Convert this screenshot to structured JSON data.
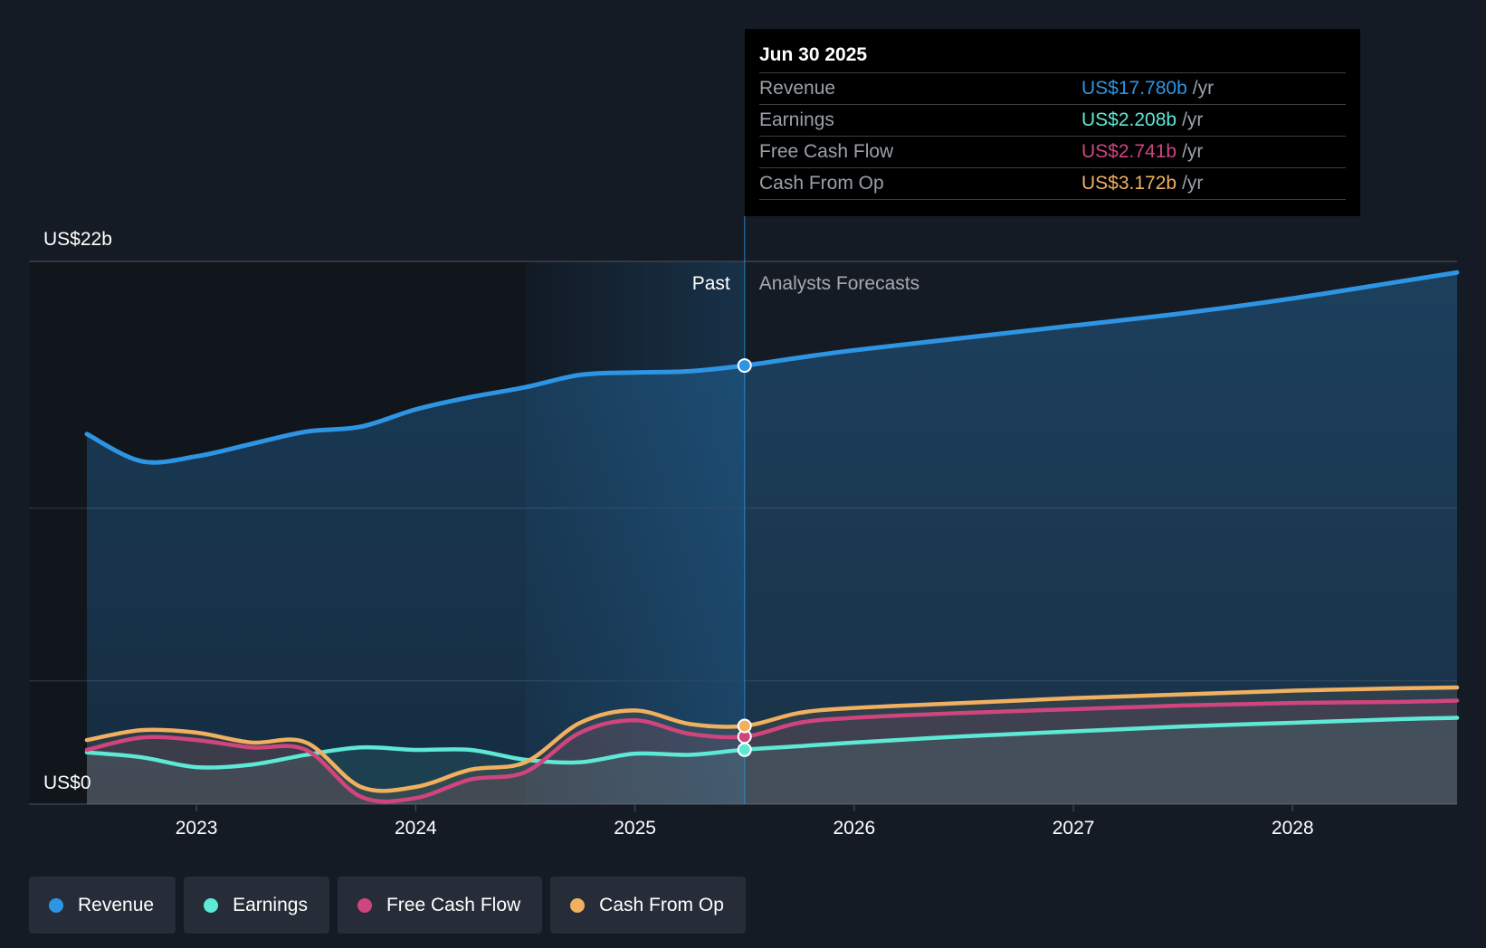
{
  "chart_data": {
    "type": "area",
    "y_axis": {
      "top_label": "US$22b",
      "bottom_label": "US$0",
      "ylim": [
        0,
        22
      ]
    },
    "x_ticks": [
      "2023",
      "2024",
      "2025",
      "2026",
      "2027",
      "2028"
    ],
    "xlim": [
      2022.5,
      2028.75
    ],
    "past_label": "Past",
    "forecast_label": "Analysts Forecasts",
    "split_x": 2025.5,
    "highlight_start_x": 2024.5,
    "tooltip": {
      "date": "Jun 30 2025",
      "rows": [
        {
          "label": "Revenue",
          "value": "US$17.780b",
          "unit": "/yr",
          "color": "#2d95e3"
        },
        {
          "label": "Earnings",
          "value": "US$2.208b",
          "unit": "/yr",
          "color": "#5ee8d6"
        },
        {
          "label": "Free Cash Flow",
          "value": "US$2.741b",
          "unit": "/yr",
          "color": "#d0457d"
        },
        {
          "label": "Cash From Op",
          "value": "US$3.172b",
          "unit": "/yr",
          "color": "#f0b060"
        }
      ]
    },
    "series": [
      {
        "name": "Revenue",
        "color": "#2d95e3",
        "points": [
          [
            2022.5,
            15.0
          ],
          [
            2022.75,
            13.9
          ],
          [
            2023.0,
            14.1
          ],
          [
            2023.25,
            14.6
          ],
          [
            2023.5,
            15.1
          ],
          [
            2023.75,
            15.3
          ],
          [
            2024.0,
            16.0
          ],
          [
            2024.25,
            16.5
          ],
          [
            2024.5,
            16.9
          ],
          [
            2024.75,
            17.4
          ],
          [
            2025.0,
            17.5
          ],
          [
            2025.25,
            17.55
          ],
          [
            2025.5,
            17.78
          ],
          [
            2025.75,
            18.1
          ],
          [
            2026.0,
            18.4
          ],
          [
            2026.5,
            18.9
          ],
          [
            2027.0,
            19.4
          ],
          [
            2027.5,
            19.9
          ],
          [
            2028.0,
            20.5
          ],
          [
            2028.5,
            21.2
          ],
          [
            2028.75,
            21.55
          ]
        ]
      },
      {
        "name": "Earnings",
        "color": "#5ee8d6",
        "points": [
          [
            2022.5,
            2.1
          ],
          [
            2022.75,
            1.9
          ],
          [
            2023.0,
            1.5
          ],
          [
            2023.25,
            1.6
          ],
          [
            2023.5,
            2.0
          ],
          [
            2023.75,
            2.3
          ],
          [
            2024.0,
            2.2
          ],
          [
            2024.25,
            2.2
          ],
          [
            2024.5,
            1.8
          ],
          [
            2024.75,
            1.7
          ],
          [
            2025.0,
            2.05
          ],
          [
            2025.25,
            2.0
          ],
          [
            2025.5,
            2.208
          ],
          [
            2025.75,
            2.35
          ],
          [
            2026.0,
            2.5
          ],
          [
            2026.5,
            2.75
          ],
          [
            2027.0,
            2.95
          ],
          [
            2027.5,
            3.15
          ],
          [
            2028.0,
            3.3
          ],
          [
            2028.5,
            3.45
          ],
          [
            2028.75,
            3.5
          ]
        ]
      },
      {
        "name": "Free Cash Flow",
        "color": "#d0457d",
        "points": [
          [
            2022.5,
            2.2
          ],
          [
            2022.75,
            2.7
          ],
          [
            2023.0,
            2.6
          ],
          [
            2023.25,
            2.3
          ],
          [
            2023.5,
            2.2
          ],
          [
            2023.75,
            0.3
          ],
          [
            2024.0,
            0.25
          ],
          [
            2024.25,
            1.0
          ],
          [
            2024.5,
            1.3
          ],
          [
            2024.75,
            2.9
          ],
          [
            2025.0,
            3.4
          ],
          [
            2025.25,
            2.85
          ],
          [
            2025.5,
            2.741
          ],
          [
            2025.75,
            3.3
          ],
          [
            2026.0,
            3.5
          ],
          [
            2026.5,
            3.7
          ],
          [
            2027.0,
            3.85
          ],
          [
            2027.5,
            4.0
          ],
          [
            2028.0,
            4.1
          ],
          [
            2028.5,
            4.15
          ],
          [
            2028.75,
            4.2
          ]
        ]
      },
      {
        "name": "Cash From Op",
        "color": "#f0b060",
        "points": [
          [
            2022.5,
            2.6
          ],
          [
            2022.75,
            3.0
          ],
          [
            2023.0,
            2.9
          ],
          [
            2023.25,
            2.5
          ],
          [
            2023.5,
            2.5
          ],
          [
            2023.75,
            0.7
          ],
          [
            2024.0,
            0.7
          ],
          [
            2024.25,
            1.4
          ],
          [
            2024.5,
            1.7
          ],
          [
            2024.75,
            3.3
          ],
          [
            2025.0,
            3.8
          ],
          [
            2025.25,
            3.25
          ],
          [
            2025.5,
            3.172
          ],
          [
            2025.75,
            3.7
          ],
          [
            2026.0,
            3.9
          ],
          [
            2026.5,
            4.1
          ],
          [
            2027.0,
            4.3
          ],
          [
            2027.5,
            4.45
          ],
          [
            2028.0,
            4.6
          ],
          [
            2028.5,
            4.7
          ],
          [
            2028.75,
            4.73
          ]
        ]
      }
    ]
  },
  "legend": [
    {
      "label": "Revenue",
      "color": "#2d95e3"
    },
    {
      "label": "Earnings",
      "color": "#5ee8d6"
    },
    {
      "label": "Free Cash Flow",
      "color": "#d0457d"
    },
    {
      "label": "Cash From Op",
      "color": "#f0b060"
    }
  ]
}
